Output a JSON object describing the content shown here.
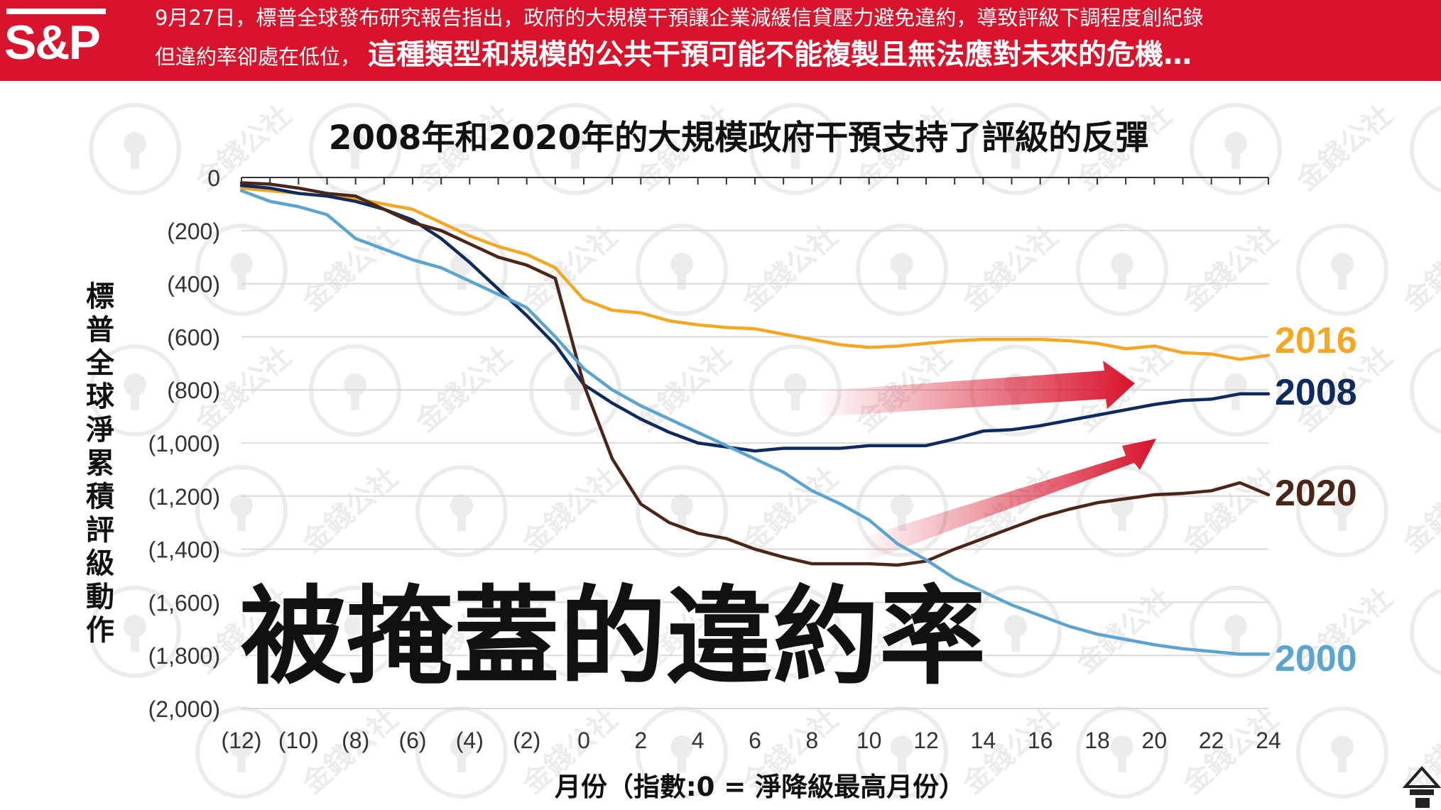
{
  "banner": {
    "logo_text": "S&P",
    "line1": "9月27日，標普全球發布研究報告指出，政府的大規模干預讓企業減緩信貸壓力避免違約，導致評級下調程度創紀錄",
    "line2_lead": "但違約率卻處在低位，",
    "line2_emphasis": "這種類型和規模的公共干預可能不能複製且無法應對未來的危機…",
    "background_color": "#d8142c"
  },
  "overlay_text": "被掩蓋的違約率",
  "watermark_text": "金錢公社",
  "chart_data": {
    "type": "line",
    "title": "2008年和2020年的大規模政府干預支持了評級的反彈",
    "xlabel": "月份（指數:0 = 淨降級最高月份）",
    "ylabel": "標普全球淨累積評級動作",
    "xlim": [
      -12,
      24
    ],
    "ylim": [
      -2000,
      0
    ],
    "x_ticks": [
      -12,
      -10,
      -8,
      -6,
      -4,
      -2,
      0,
      2,
      4,
      6,
      8,
      10,
      12,
      14,
      16,
      18,
      20,
      22,
      24
    ],
    "x_tick_labels": [
      "(12)",
      "(10)",
      "(8)",
      "(6)",
      "(4)",
      "(2)",
      "0",
      "2",
      "4",
      "6",
      "8",
      "10",
      "12",
      "14",
      "16",
      "18",
      "20",
      "22",
      "24"
    ],
    "y_ticks": [
      0,
      -200,
      -400,
      -600,
      -800,
      -1000,
      -1200,
      -1400,
      -1600,
      -1800,
      -2000
    ],
    "y_tick_labels": [
      "0",
      "(200)",
      "(400)",
      "(600)",
      "(800)",
      "(1,000)",
      "(1,200)",
      "(1,400)",
      "(1,600)",
      "(1,800)",
      "(2,000)"
    ],
    "grid": "horizontal",
    "series": [
      {
        "name": "2016",
        "color": "#f5a623",
        "x": [
          -12,
          -11,
          -10,
          -9,
          -8,
          -7,
          -6,
          -5,
          -4,
          -3,
          -2,
          -1,
          0,
          1,
          2,
          3,
          4,
          5,
          6,
          7,
          8,
          9,
          10,
          11,
          12,
          13,
          14,
          15,
          16,
          17,
          18,
          19,
          20,
          21,
          22,
          23,
          24
        ],
        "y": [
          -40,
          -50,
          -60,
          -70,
          -80,
          -100,
          -120,
          -170,
          -220,
          -260,
          -290,
          -340,
          -460,
          -500,
          -510,
          -540,
          -555,
          -565,
          -570,
          -590,
          -610,
          -630,
          -640,
          -635,
          -625,
          -615,
          -610,
          -610,
          -610,
          -615,
          -625,
          -645,
          -635,
          -660,
          -665,
          -685,
          -670
        ]
      },
      {
        "name": "2008",
        "color": "#0f2a5c",
        "x": [
          -12,
          -11,
          -10,
          -9,
          -8,
          -7,
          -6,
          -5,
          -4,
          -3,
          -2,
          -1,
          0,
          1,
          2,
          3,
          4,
          5,
          6,
          7,
          8,
          9,
          10,
          11,
          12,
          13,
          14,
          15,
          16,
          17,
          18,
          19,
          20,
          21,
          22,
          23,
          24
        ],
        "y": [
          -30,
          -40,
          -60,
          -70,
          -90,
          -120,
          -160,
          -230,
          -320,
          -420,
          -520,
          -630,
          -780,
          -850,
          -910,
          -960,
          -1000,
          -1015,
          -1030,
          -1020,
          -1020,
          -1020,
          -1010,
          -1010,
          -1010,
          -985,
          -955,
          -950,
          -935,
          -915,
          -895,
          -875,
          -855,
          -840,
          -835,
          -815,
          -815
        ]
      },
      {
        "name": "2020",
        "color": "#4a2618",
        "x": [
          -12,
          -11,
          -10,
          -9,
          -8,
          -7,
          -6,
          -5,
          -4,
          -3,
          -2,
          -1,
          0,
          1,
          2,
          3,
          4,
          5,
          6,
          7,
          8,
          9,
          10,
          11,
          12,
          13,
          14,
          15,
          16,
          17,
          18,
          19,
          20,
          21,
          22,
          23,
          24
        ],
        "y": [
          -20,
          -25,
          -40,
          -60,
          -70,
          -120,
          -170,
          -200,
          -250,
          -300,
          -330,
          -380,
          -780,
          -1060,
          -1230,
          -1300,
          -1340,
          -1360,
          -1400,
          -1430,
          -1455,
          -1455,
          -1455,
          -1460,
          -1445,
          -1400,
          -1360,
          -1320,
          -1280,
          -1250,
          -1225,
          -1210,
          -1195,
          -1190,
          -1180,
          -1150,
          -1195
        ]
      },
      {
        "name": "2000",
        "color": "#5ba4cf",
        "x": [
          -12,
          -11,
          -10,
          -9,
          -8,
          -7,
          -6,
          -5,
          -4,
          -3,
          -2,
          -1,
          0,
          1,
          2,
          3,
          4,
          5,
          6,
          7,
          8,
          9,
          10,
          11,
          12,
          13,
          14,
          15,
          16,
          17,
          18,
          19,
          20,
          21,
          22,
          23,
          24
        ],
        "y": [
          -50,
          -90,
          -110,
          -140,
          -230,
          -270,
          -310,
          -340,
          -390,
          -440,
          -490,
          -600,
          -720,
          -800,
          -860,
          -910,
          -960,
          -1010,
          -1060,
          -1110,
          -1180,
          -1230,
          -1290,
          -1380,
          -1440,
          -1510,
          -1560,
          -1610,
          -1650,
          -1690,
          -1720,
          -1740,
          -1760,
          -1775,
          -1785,
          -1795,
          -1795
        ]
      }
    ],
    "annotations": [
      "2016",
      "2008",
      "2020",
      "2000"
    ]
  }
}
